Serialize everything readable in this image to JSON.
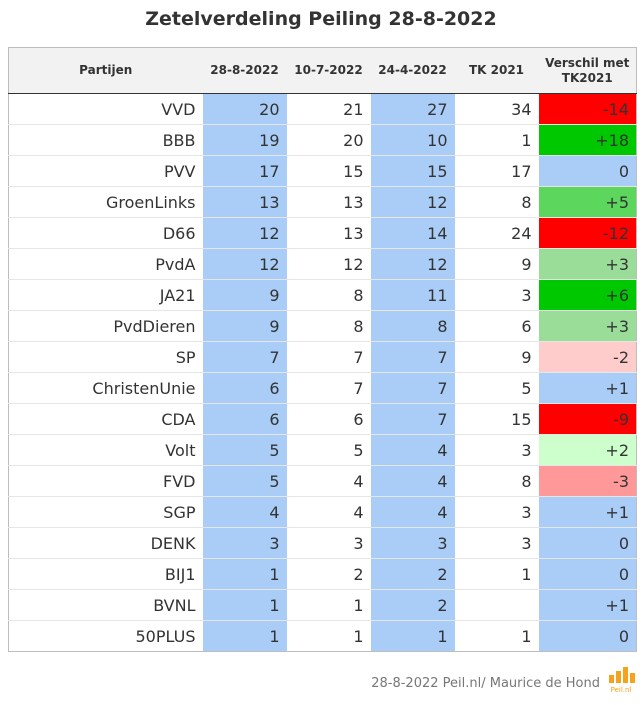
{
  "chart_data": {
    "type": "table",
    "title": "Zetelverdeling Peiling 28-8-2022",
    "columns": [
      "Partijen",
      "28-8-2022",
      "10-7-2022",
      "24-4-2022",
      "TK 2021",
      "Verschil met TK2021"
    ],
    "rows": [
      {
        "party": "VVD",
        "v1": "20",
        "v2": "21",
        "v3": "27",
        "tk": "34",
        "diff": "-14",
        "color": "#ff0000"
      },
      {
        "party": "BBB",
        "v1": "19",
        "v2": "20",
        "v3": "10",
        "tk": "1",
        "diff": "+18",
        "color": "#00c800"
      },
      {
        "party": "PVV",
        "v1": "17",
        "v2": "15",
        "v3": "15",
        "tk": "17",
        "diff": "0",
        "color": "#a9cdf7"
      },
      {
        "party": "GroenLinks",
        "v1": "13",
        "v2": "13",
        "v3": "12",
        "tk": "8",
        "diff": "+5",
        "color": "#5cd65c"
      },
      {
        "party": "D66",
        "v1": "12",
        "v2": "13",
        "v3": "14",
        "tk": "24",
        "diff": "-12",
        "color": "#ff0000"
      },
      {
        "party": "PvdA",
        "v1": "12",
        "v2": "12",
        "v3": "12",
        "tk": "9",
        "diff": "+3",
        "color": "#99dd99"
      },
      {
        "party": "JA21",
        "v1": "9",
        "v2": "8",
        "v3": "11",
        "tk": "3",
        "diff": "+6",
        "color": "#00c800"
      },
      {
        "party": "PvdDieren",
        "v1": "9",
        "v2": "8",
        "v3": "8",
        "tk": "6",
        "diff": "+3",
        "color": "#99dd99"
      },
      {
        "party": "SP",
        "v1": "7",
        "v2": "7",
        "v3": "7",
        "tk": "9",
        "diff": "-2",
        "color": "#ffcccc"
      },
      {
        "party": "ChristenUnie",
        "v1": "6",
        "v2": "7",
        "v3": "7",
        "tk": "5",
        "diff": "+1",
        "color": "#a9cdf7"
      },
      {
        "party": "CDA",
        "v1": "6",
        "v2": "6",
        "v3": "7",
        "tk": "15",
        "diff": "-9",
        "color": "#ff0000"
      },
      {
        "party": "Volt",
        "v1": "5",
        "v2": "5",
        "v3": "4",
        "tk": "3",
        "diff": "+2",
        "color": "#ccffcc"
      },
      {
        "party": "FVD",
        "v1": "5",
        "v2": "4",
        "v3": "4",
        "tk": "8",
        "diff": "-3",
        "color": "#ff9999"
      },
      {
        "party": "SGP",
        "v1": "4",
        "v2": "4",
        "v3": "4",
        "tk": "3",
        "diff": "+1",
        "color": "#a9cdf7"
      },
      {
        "party": "DENK",
        "v1": "3",
        "v2": "3",
        "v3": "3",
        "tk": "3",
        "diff": "0",
        "color": "#a9cdf7"
      },
      {
        "party": "BIJ1",
        "v1": "1",
        "v2": "2",
        "v3": "2",
        "tk": "1",
        "diff": "0",
        "color": "#a9cdf7"
      },
      {
        "party": "BVNL",
        "v1": "1",
        "v2": "1",
        "v3": "2",
        "tk": "",
        "diff": "+1",
        "color": "#a9cdf7"
      },
      {
        "party": "50PLUS",
        "v1": "1",
        "v2": "1",
        "v3": "1",
        "tk": "1",
        "diff": "0",
        "color": "#a9cdf7"
      }
    ]
  },
  "footer": "28-8-2022 Peil.nl/ Maurice de Hond",
  "logo_text": "Peil.nl",
  "colors": {
    "header_bg": "#f2f2f2",
    "highlight_blue": "#a9cdf7",
    "logo_orange": "#f7a21b"
  }
}
